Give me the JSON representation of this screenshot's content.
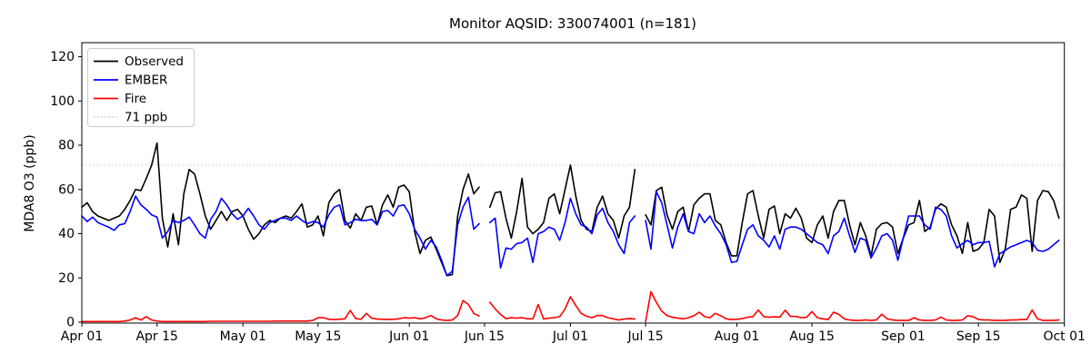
{
  "page": {
    "background": "#ffffff"
  },
  "chart_data": {
    "type": "line",
    "title": "Monitor AQSID: 330074001 (n=181)",
    "ylabel": "MDA8 O3 (ppb)",
    "xlabel": "",
    "ylim": [
      0,
      120
    ],
    "y_ticks": [
      0,
      20,
      40,
      60,
      80,
      100,
      120
    ],
    "x_tick_labels": [
      "Apr 01",
      "Apr 15",
      "May 01",
      "May 15",
      "Jun 01",
      "Jun 15",
      "Jul 01",
      "Jul 15",
      "Aug 01",
      "Aug 15",
      "Sep 01",
      "Sep 15",
      "Oct 01"
    ],
    "x_tick_days": [
      0,
      14,
      30,
      44,
      61,
      75,
      91,
      105,
      122,
      136,
      153,
      167,
      183
    ],
    "x_domain_days": 183,
    "x_start_label": "Apr 01",
    "x_end_label": "Oct 01",
    "grid": false,
    "legend_position": "upper left",
    "missing_days": [
      "Jun 15",
      "Jul 14"
    ],
    "ref_line": {
      "label": "71 ppb",
      "value": 71,
      "color": "#d3d3d3",
      "style": "dotted"
    },
    "series": [
      {
        "name": "Observed",
        "color": "#000000",
        "values": [
          52,
          54,
          50,
          48,
          47,
          46,
          47,
          48,
          51,
          55,
          60,
          59.5,
          65,
          71,
          81,
          47,
          34,
          49,
          35,
          58,
          69,
          67,
          58,
          48,
          42,
          46,
          50,
          46,
          50,
          51,
          48,
          42,
          37.5,
          40,
          44,
          46,
          45,
          47,
          48,
          47,
          50,
          53.5,
          43,
          44,
          48,
          39,
          54,
          58,
          60,
          46,
          42.5,
          49,
          46,
          52,
          52.5,
          44,
          53,
          57.5,
          52,
          61,
          62,
          59,
          41,
          31,
          37,
          38.5,
          33,
          27,
          21,
          21.5,
          48,
          60,
          67,
          58,
          61,
          null,
          52,
          58.5,
          59,
          47,
          38,
          50,
          65,
          43,
          40,
          42,
          45,
          56,
          58,
          49,
          60,
          71,
          57,
          46,
          42,
          41,
          52,
          57,
          49,
          46,
          38,
          48,
          52,
          69,
          null,
          48.5,
          44,
          59.5,
          61,
          48.5,
          42,
          50,
          52,
          41,
          53,
          56,
          58,
          58,
          46,
          44,
          36,
          30,
          30,
          45,
          58,
          59.5,
          48,
          38,
          51,
          52.5,
          40,
          49,
          47,
          51.5,
          47,
          38,
          36,
          44,
          48,
          38,
          50,
          55,
          55,
          44,
          35,
          45,
          39,
          30,
          42,
          44.5,
          45,
          43,
          31,
          38,
          44,
          45,
          55,
          41,
          43,
          51,
          53.5,
          52,
          44,
          39,
          31,
          45,
          32,
          33,
          36,
          51,
          48,
          27,
          33,
          51,
          52,
          57.5,
          56,
          32,
          55,
          59.5,
          59,
          55,
          47
        ]
      },
      {
        "name": "EMBER",
        "color": "#0000ff",
        "values": [
          48,
          45.5,
          47.5,
          45,
          44,
          43,
          41.5,
          44,
          44.5,
          50,
          57,
          53,
          51,
          48.5,
          47.5,
          38,
          41,
          46,
          45,
          46,
          47.5,
          44,
          40,
          38,
          46.5,
          50,
          56,
          53,
          49,
          46.5,
          48,
          51.5,
          48,
          44,
          42,
          45,
          46,
          47,
          47,
          46,
          48,
          46,
          44.5,
          45.5,
          45,
          43,
          48.5,
          52,
          53,
          44,
          45,
          46.5,
          46,
          46,
          46.5,
          44,
          50,
          50.5,
          48,
          52.5,
          53,
          49,
          42,
          38,
          33,
          37,
          34,
          28,
          21,
          23,
          44,
          52,
          56.5,
          42,
          44.5,
          null,
          45,
          47,
          24.5,
          33.5,
          33,
          35.5,
          36,
          38,
          27,
          40,
          41,
          43,
          42,
          37,
          45,
          56,
          49,
          44,
          43,
          40,
          48.5,
          51.5,
          45,
          41,
          35,
          31,
          45,
          48,
          null,
          46,
          33,
          59,
          54,
          44,
          33.5,
          43,
          49,
          41,
          40,
          49,
          45,
          48,
          43.5,
          40,
          35,
          27,
          27.5,
          35,
          42,
          44,
          39,
          37,
          34,
          39,
          33,
          42,
          43,
          43,
          42,
          40,
          38,
          36,
          35,
          31,
          39,
          41,
          47,
          39,
          31.5,
          38,
          37,
          29,
          33.5,
          39,
          40,
          37,
          28,
          38,
          48,
          48,
          48,
          44,
          42,
          52,
          51,
          48,
          39,
          33.5,
          35.5,
          37,
          35,
          36,
          36,
          36.5,
          25,
          31,
          32.5,
          34,
          35,
          36,
          37,
          36,
          32.5,
          32,
          33,
          35,
          37
        ]
      },
      {
        "name": "Fire",
        "color": "#ff0000",
        "values": [
          0.3,
          0.3,
          0.3,
          0.3,
          0.3,
          0.3,
          0.3,
          0.3,
          0.5,
          1,
          2,
          1,
          2.5,
          1,
          0.5,
          0.3,
          0.3,
          0.3,
          0.3,
          0.3,
          0.3,
          0.3,
          0.3,
          0.3,
          0.4,
          0.4,
          0.4,
          0.4,
          0.4,
          0.4,
          0.4,
          0.4,
          0.4,
          0.4,
          0.4,
          0.4,
          0.5,
          0.5,
          0.5,
          0.5,
          0.5,
          0.5,
          0.5,
          0.8,
          2,
          2,
          1.3,
          1.2,
          1.3,
          1.5,
          5.3,
          1.6,
          1.3,
          4,
          1.8,
          1.4,
          1.3,
          1.2,
          1.3,
          1.5,
          2,
          1.8,
          2,
          1.5,
          2,
          3,
          1.5,
          1,
          0.8,
          1,
          3,
          9.8,
          8,
          4,
          2.8,
          null,
          9,
          6,
          3.5,
          1.6,
          2,
          1.8,
          2,
          1.5,
          1.5,
          8,
          1.4,
          1.8,
          2,
          2.5,
          6,
          11.5,
          7.5,
          4,
          2.7,
          2,
          3,
          3,
          2,
          1.5,
          1,
          1.4,
          1.6,
          1.4,
          null,
          0.3,
          13.8,
          9,
          5,
          3,
          2.2,
          1.8,
          1.5,
          2,
          2.9,
          4.5,
          2.5,
          2,
          4,
          2.9,
          1.5,
          1.2,
          1.3,
          1.6,
          2.2,
          2.5,
          5.5,
          2.5,
          2.2,
          2.4,
          2.2,
          5.4,
          2.6,
          2.6,
          2,
          2.2,
          4.8,
          2,
          1.5,
          1.2,
          4.5,
          3.5,
          1.5,
          1,
          0.8,
          0.8,
          1,
          0.8,
          1,
          3.6,
          1.5,
          1,
          0.8,
          0.8,
          0.8,
          2,
          1,
          0.8,
          0.8,
          1,
          2.3,
          1,
          0.8,
          0.8,
          1,
          2.9,
          2.5,
          1.2,
          1,
          1,
          0.8,
          0.8,
          0.8,
          1,
          1,
          1.2,
          1.2,
          5.5,
          1.5,
          0.8,
          0.8,
          0.8,
          1
        ]
      }
    ],
    "legend_entries": [
      "Observed",
      "EMBER",
      "Fire",
      "71 ppb"
    ]
  }
}
